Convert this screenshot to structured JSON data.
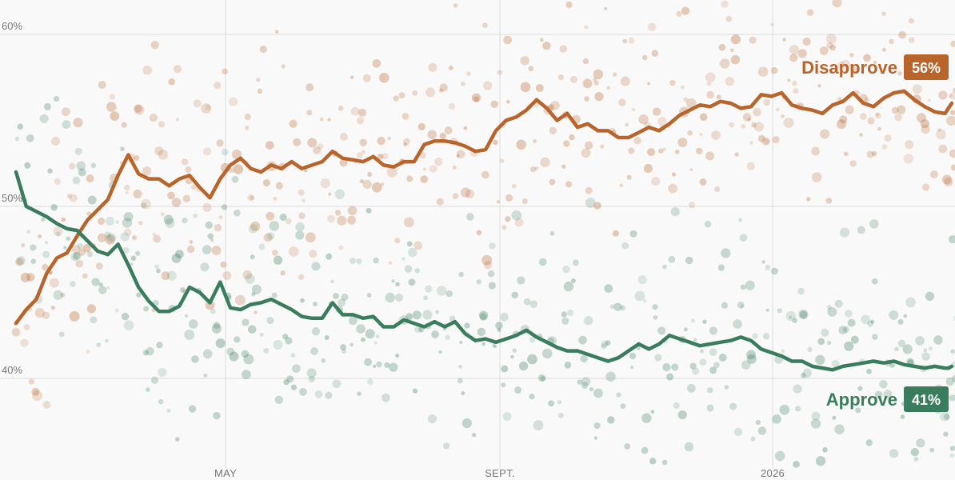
{
  "chart_data": {
    "type": "line",
    "title": "",
    "xlabel": "",
    "ylabel": "",
    "x_ticks": [
      "MAY",
      "SEPT.",
      "2026"
    ],
    "y_ticks": [
      "40%",
      "50%",
      "60%"
    ],
    "ylim": [
      35,
      64
    ],
    "grid": true,
    "legend": "end-labels",
    "colors": {
      "approve": "#3a7d5e",
      "disapprove": "#b8642a",
      "background": "#f9f9f9",
      "grid": "#dddddd"
    },
    "series": [
      {
        "name": "Disapprove",
        "end_label": "56%",
        "x": [
          0,
          3,
          6,
          9,
          12,
          15,
          18,
          21,
          24,
          27,
          30,
          33,
          36,
          39,
          42,
          45,
          48,
          51,
          54,
          57,
          60,
          63,
          66,
          69,
          72,
          75,
          78,
          81,
          84,
          87,
          90,
          93,
          96,
          99,
          102,
          105,
          108,
          111,
          114,
          117,
          120,
          123,
          126,
          129,
          132,
          135,
          138,
          141,
          144,
          147,
          150,
          153,
          156,
          159,
          162,
          165,
          168,
          171,
          174,
          177,
          180,
          183,
          186,
          189,
          192,
          195,
          198,
          201,
          204,
          207,
          210,
          213,
          216,
          219,
          222,
          225,
          228,
          231,
          234,
          237,
          240,
          243,
          246,
          249,
          252,
          255,
          258,
          261,
          264,
          267,
          270,
          273,
          274,
          275
        ],
        "values": [
          43.2,
          44.0,
          44.6,
          46.1,
          47.0,
          47.3,
          48.3,
          49.2,
          49.8,
          50.4,
          51.8,
          53.0,
          51.9,
          51.6,
          51.6,
          51.2,
          51.6,
          51.8,
          51.1,
          50.5,
          51.6,
          52.4,
          52.8,
          52.2,
          52.0,
          52.4,
          52.2,
          52.6,
          52.2,
          52.4,
          52.6,
          53.2,
          52.8,
          52.7,
          52.6,
          52.9,
          52.4,
          52.3,
          52.6,
          52.6,
          53.6,
          53.8,
          53.8,
          53.7,
          53.5,
          53.2,
          53.3,
          54.4,
          55.0,
          55.2,
          55.6,
          56.2,
          55.7,
          55.0,
          55.4,
          54.6,
          54.8,
          54.4,
          54.4,
          54.0,
          54.0,
          54.3,
          54.6,
          54.4,
          54.8,
          55.3,
          55.6,
          55.9,
          55.8,
          56.1,
          56.0,
          55.7,
          55.8,
          56.5,
          56.4,
          56.6,
          55.9,
          55.7,
          55.6,
          55.4,
          55.9,
          56.1,
          56.6,
          56.0,
          55.8,
          56.3,
          56.6,
          56.7,
          56.2,
          55.8,
          55.5,
          55.4,
          55.7,
          56.0
        ]
      },
      {
        "name": "Approve",
        "end_label": "41%",
        "x": [
          0,
          3,
          6,
          9,
          12,
          15,
          18,
          21,
          24,
          27,
          30,
          33,
          36,
          39,
          42,
          45,
          48,
          51,
          54,
          57,
          60,
          63,
          66,
          69,
          72,
          75,
          78,
          81,
          84,
          87,
          90,
          93,
          96,
          99,
          102,
          105,
          108,
          111,
          114,
          117,
          120,
          123,
          126,
          129,
          132,
          135,
          138,
          141,
          144,
          147,
          150,
          153,
          156,
          159,
          162,
          165,
          168,
          171,
          174,
          177,
          180,
          183,
          186,
          189,
          192,
          195,
          198,
          201,
          204,
          207,
          210,
          213,
          216,
          219,
          222,
          225,
          228,
          231,
          234,
          237,
          240,
          243,
          246,
          249,
          252,
          255,
          258,
          261,
          264,
          267,
          270,
          273,
          274,
          275
        ],
        "values": [
          52.0,
          50.0,
          49.7,
          49.4,
          49.0,
          48.7,
          48.6,
          48.0,
          47.4,
          47.2,
          47.8,
          46.6,
          45.3,
          44.5,
          43.9,
          43.9,
          44.2,
          45.3,
          45.0,
          44.4,
          45.6,
          44.1,
          44.0,
          44.3,
          44.4,
          44.6,
          44.3,
          44.0,
          43.6,
          43.5,
          43.5,
          44.4,
          43.7,
          43.7,
          43.5,
          43.6,
          43.0,
          43.0,
          43.4,
          43.2,
          43.0,
          43.3,
          43.0,
          43.3,
          42.6,
          42.2,
          42.3,
          42.1,
          42.3,
          42.5,
          42.8,
          42.4,
          42.1,
          41.8,
          41.6,
          41.6,
          41.4,
          41.2,
          41.0,
          41.2,
          41.6,
          42.0,
          41.7,
          42.0,
          42.5,
          42.3,
          42.1,
          41.9,
          42.0,
          42.1,
          42.2,
          42.4,
          42.2,
          41.7,
          41.5,
          41.3,
          41.0,
          41.0,
          40.7,
          40.6,
          40.5,
          40.7,
          40.8,
          40.9,
          41.0,
          40.9,
          41.0,
          40.8,
          40.7,
          40.6,
          40.7,
          40.6,
          40.6,
          40.7
        ]
      }
    ]
  }
}
